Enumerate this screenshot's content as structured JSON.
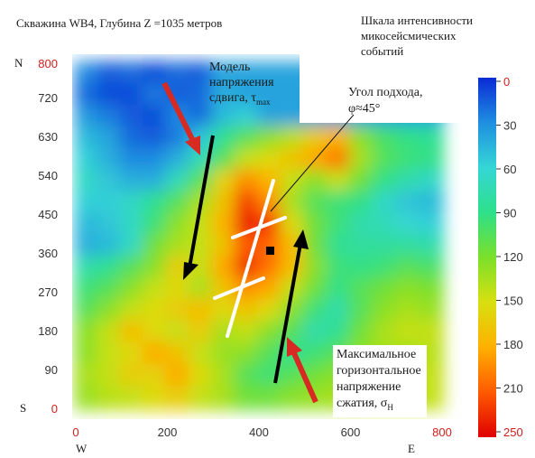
{
  "title": "Скважина WB4, Глубина Z =1035 метров",
  "colorbar_title": [
    "Шкала интенсивности",
    "микосейсмических",
    "событий"
  ],
  "annotations": {
    "shear_model": [
      "Модель",
      "напряжения",
      "сдвига, τ",
      "max"
    ],
    "approach_angle": [
      "Угол подхода,",
      "φ≈45°"
    ],
    "max_horizontal_stress": [
      "Максимальное",
      "горизонтальное",
      "напряжение",
      "сжатия, σ",
      "H"
    ]
  },
  "compass": {
    "north": "N",
    "south": "S",
    "west": "W",
    "east": "E"
  },
  "colors": {
    "axis_end_labels": "#d0201c",
    "arrow_red": "#d62a22",
    "arrow_black": "#000000",
    "fracture_lines": "#ffffff",
    "colormap": [
      "#0a2bd6",
      "#1f8fe0",
      "#35d6d6",
      "#2ee08a",
      "#7be02a",
      "#d8e010",
      "#ffb000",
      "#ff5a00",
      "#e00000"
    ]
  },
  "chart_data": {
    "type": "heatmap",
    "x_ticks": [
      "0",
      "200",
      "400",
      "600",
      "800"
    ],
    "y_ticks": [
      "0",
      "90",
      "180",
      "270",
      "360",
      "450",
      "540",
      "630",
      "720",
      "800"
    ],
    "x_range": [
      0,
      800
    ],
    "y_range": [
      0,
      800
    ],
    "colorbar": {
      "ticks": [
        "0",
        "30",
        "60",
        "90",
        "120",
        "150",
        "180",
        "210",
        "250"
      ],
      "range": [
        0,
        250
      ],
      "reversed": true
    },
    "grid_step": 50,
    "grid_x": [
      0,
      50,
      100,
      150,
      200,
      250,
      300,
      350,
      400,
      450,
      500,
      550,
      600,
      650,
      700,
      750
    ],
    "grid_y": [
      800,
      750,
      700,
      650,
      600,
      550,
      500,
      450,
      400,
      350,
      300,
      250,
      200,
      150,
      100,
      50
    ],
    "values": [
      [
        30,
        15,
        20,
        10,
        20,
        15,
        40,
        40,
        40,
        40,
        40,
        40,
        40,
        40,
        40,
        40
      ],
      [
        20,
        10,
        10,
        25,
        15,
        20,
        45,
        40,
        40,
        40,
        40,
        40,
        40,
        40,
        40,
        40
      ],
      [
        35,
        25,
        15,
        10,
        30,
        20,
        50,
        60,
        40,
        40,
        40,
        40,
        40,
        40,
        40,
        40
      ],
      [
        50,
        40,
        20,
        15,
        25,
        55,
        90,
        110,
        130,
        145,
        170,
        185,
        130,
        105,
        95,
        90
      ],
      [
        60,
        45,
        30,
        30,
        45,
        75,
        110,
        150,
        160,
        175,
        190,
        210,
        140,
        110,
        100,
        95
      ],
      [
        70,
        55,
        45,
        45,
        75,
        110,
        165,
        200,
        185,
        150,
        130,
        150,
        120,
        95,
        80,
        70
      ],
      [
        60,
        60,
        70,
        90,
        110,
        140,
        175,
        230,
        200,
        140,
        110,
        100,
        95,
        70,
        55,
        50
      ],
      [
        50,
        55,
        70,
        100,
        130,
        150,
        185,
        240,
        230,
        160,
        120,
        100,
        80,
        75,
        65,
        60
      ],
      [
        45,
        50,
        70,
        120,
        140,
        150,
        175,
        220,
        215,
        180,
        120,
        90,
        85,
        85,
        85,
        80
      ],
      [
        80,
        90,
        110,
        130,
        170,
        150,
        190,
        235,
        210,
        180,
        130,
        100,
        95,
        100,
        110,
        105
      ],
      [
        100,
        110,
        130,
        150,
        160,
        140,
        175,
        200,
        190,
        150,
        120,
        95,
        110,
        120,
        130,
        125
      ],
      [
        110,
        130,
        150,
        160,
        170,
        180,
        160,
        175,
        160,
        130,
        100,
        80,
        110,
        130,
        140,
        135
      ],
      [
        130,
        150,
        180,
        160,
        150,
        170,
        140,
        150,
        130,
        110,
        80,
        90,
        120,
        140,
        150,
        150
      ],
      [
        130,
        150,
        160,
        190,
        175,
        150,
        135,
        130,
        110,
        90,
        100,
        110,
        130,
        140,
        140,
        145
      ],
      [
        140,
        150,
        170,
        165,
        190,
        160,
        140,
        110,
        100,
        110,
        120,
        130,
        140,
        145,
        150,
        150
      ],
      [
        135,
        145,
        150,
        160,
        170,
        150,
        140,
        120,
        120,
        130,
        135,
        140,
        145,
        150,
        150,
        150
      ]
    ],
    "marker": {
      "x": 400,
      "y": 380
    }
  }
}
